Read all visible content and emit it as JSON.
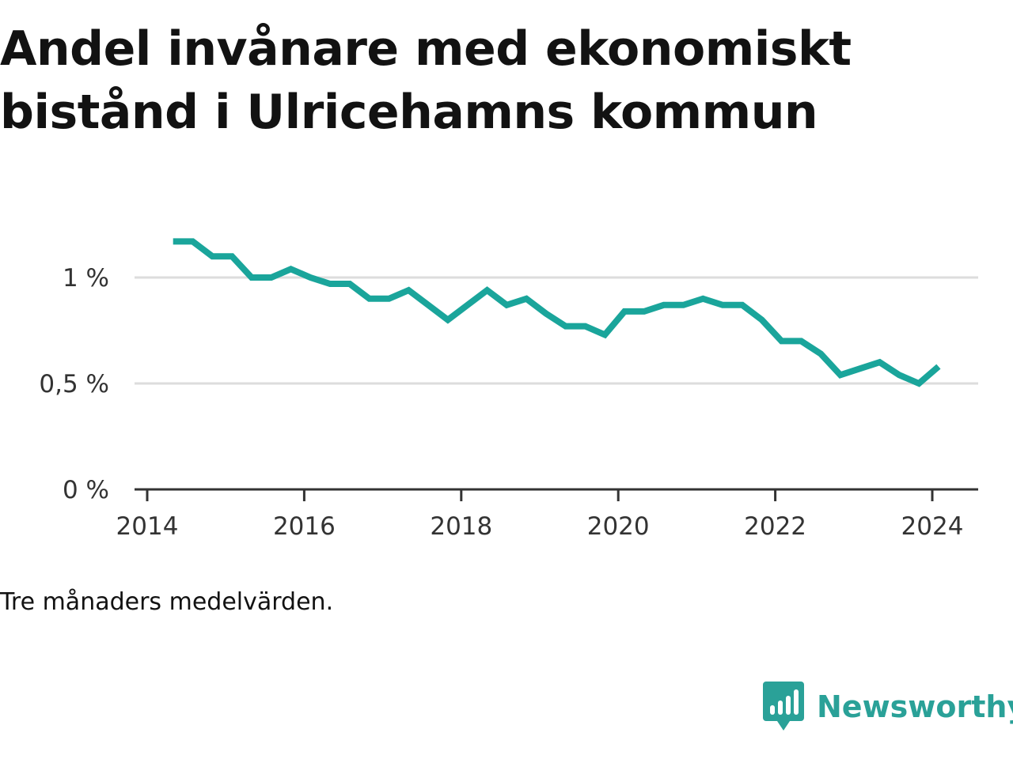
{
  "title": "Andel invånare med ekonomiskt bistånd i Ulricehamns kommun",
  "note": "Tre månaders medelvärden.",
  "brand": {
    "name": "Newsworthy",
    "icon": "newsworthy-logo-icon"
  },
  "colors": {
    "line": "#1aa59b",
    "grid": "#dddddd",
    "axis": "#333333",
    "brand": "#2aa198"
  },
  "chart_data": {
    "type": "line",
    "title": "Andel invånare med ekonomiskt bistånd i Ulricehamns kommun",
    "xlabel": "",
    "ylabel": "",
    "xlim": [
      2013.9,
      2024.6
    ],
    "ylim": [
      0,
      1.25
    ],
    "x_ticks": [
      2014,
      2016,
      2018,
      2020,
      2022,
      2024
    ],
    "x_tick_labels": [
      "2014",
      "2016",
      "2018",
      "2020",
      "2022",
      "2024"
    ],
    "y_ticks": [
      0,
      0.5,
      1
    ],
    "y_tick_labels": [
      "0 %",
      "0,5 %",
      "1 %"
    ],
    "grid": "horizontal",
    "series": [
      {
        "x": [
          2014.33,
          2014.58,
          2014.83,
          2015.08,
          2015.33,
          2015.58,
          2015.83,
          2016.08,
          2016.33,
          2016.58,
          2016.83,
          2017.08,
          2017.33,
          2017.58,
          2017.83,
          2018.08,
          2018.33,
          2018.58,
          2018.83,
          2019.08,
          2019.33,
          2019.58,
          2019.83,
          2020.08,
          2020.33,
          2020.58,
          2020.83,
          2021.08,
          2021.33,
          2021.58,
          2021.83,
          2022.08,
          2022.33,
          2022.58,
          2022.83,
          2023.08,
          2023.33,
          2023.58,
          2023.83,
          2024.08
        ],
        "y": [
          1.17,
          1.17,
          1.1,
          1.1,
          1.0,
          1.0,
          1.04,
          1.0,
          0.97,
          0.97,
          0.9,
          0.9,
          0.94,
          0.87,
          0.8,
          0.87,
          0.94,
          0.87,
          0.9,
          0.83,
          0.77,
          0.77,
          0.73,
          0.84,
          0.84,
          0.87,
          0.87,
          0.9,
          0.87,
          0.87,
          0.8,
          0.7,
          0.7,
          0.64,
          0.54,
          0.57,
          0.6,
          0.54,
          0.5,
          0.58
        ]
      }
    ]
  }
}
